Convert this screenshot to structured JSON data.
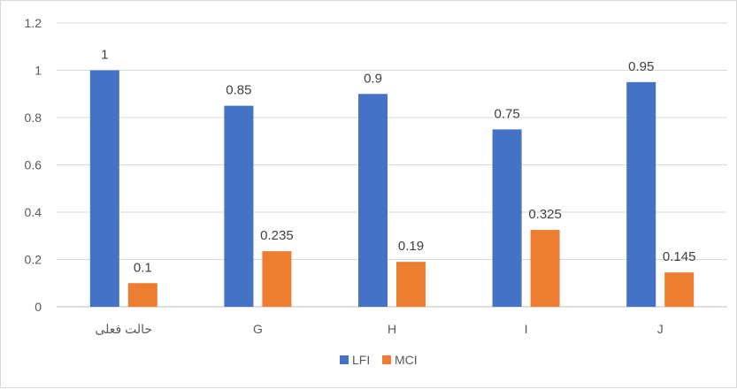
{
  "chart_data": {
    "type": "bar",
    "title": "",
    "xlabel": "",
    "ylabel": "",
    "categories": [
      "حالت فعلی",
      "G",
      "H",
      "I",
      "J"
    ],
    "series": [
      {
        "name": "LFI",
        "color": "#4472C4",
        "values": [
          1,
          0.85,
          0.9,
          0.75,
          0.95
        ],
        "labels": [
          "1",
          "0.85",
          "0.9",
          "0.75",
          "0.95"
        ]
      },
      {
        "name": "MCI",
        "color": "#ED7D31",
        "values": [
          0.1,
          0.235,
          0.19,
          0.325,
          0.145
        ],
        "labels": [
          "0.1",
          "0.235",
          "0.19",
          "0.325",
          "0.145"
        ]
      }
    ],
    "ylim": [
      0,
      1.2
    ],
    "yticks": [
      "0",
      "0.2",
      "0.4",
      "0.6",
      "0.8",
      "1",
      "1.2"
    ],
    "grid": true,
    "legend_position": "bottom"
  }
}
